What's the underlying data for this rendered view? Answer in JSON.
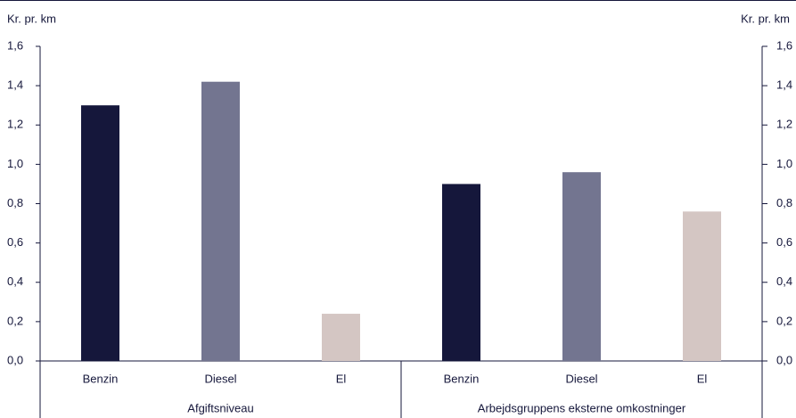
{
  "chart_data": {
    "type": "bar",
    "ylabel": "Kr. pr. km",
    "y2label": "Kr. pr. km",
    "groups": [
      {
        "name": "Afgiftsniveau",
        "categories": [
          "Benzin",
          "Diesel",
          "El"
        ],
        "values": [
          1.3,
          1.42,
          0.24
        ]
      },
      {
        "name": "Arbejdsgruppens eksterne omkostninger",
        "categories": [
          "Benzin",
          "Diesel",
          "El"
        ],
        "values": [
          0.9,
          0.96,
          0.76
        ]
      }
    ],
    "colors": [
      "#15173b",
      "#737590",
      "#d4c6c3"
    ],
    "ylim": [
      0,
      1.6
    ],
    "yticks": [
      {
        "value": 0,
        "label": "0,0"
      },
      {
        "value": 0.2,
        "label": "0,2"
      },
      {
        "value": 0.4,
        "label": "0,4"
      },
      {
        "value": 0.6,
        "label": "0,6"
      },
      {
        "value": 0.8,
        "label": "0,8"
      },
      {
        "value": 1.0,
        "label": "1,0"
      },
      {
        "value": 1.2,
        "label": "1,2"
      },
      {
        "value": 1.4,
        "label": "1,4"
      },
      {
        "value": 1.6,
        "label": "1,6"
      }
    ],
    "y2lim": [
      0,
      1.6
    ],
    "y2ticks": [
      {
        "value": 0,
        "label": "0,0"
      },
      {
        "value": 0.2,
        "label": "0,2"
      },
      {
        "value": 0.4,
        "label": "0,4"
      },
      {
        "value": 0.6,
        "label": "0,6"
      },
      {
        "value": 0.8,
        "label": "0,8"
      },
      {
        "value": 1.0,
        "label": "1,0"
      },
      {
        "value": 1.2,
        "label": "1,2"
      },
      {
        "value": 1.4,
        "label": "1,4"
      },
      {
        "value": 1.6,
        "label": "1,6"
      }
    ]
  }
}
